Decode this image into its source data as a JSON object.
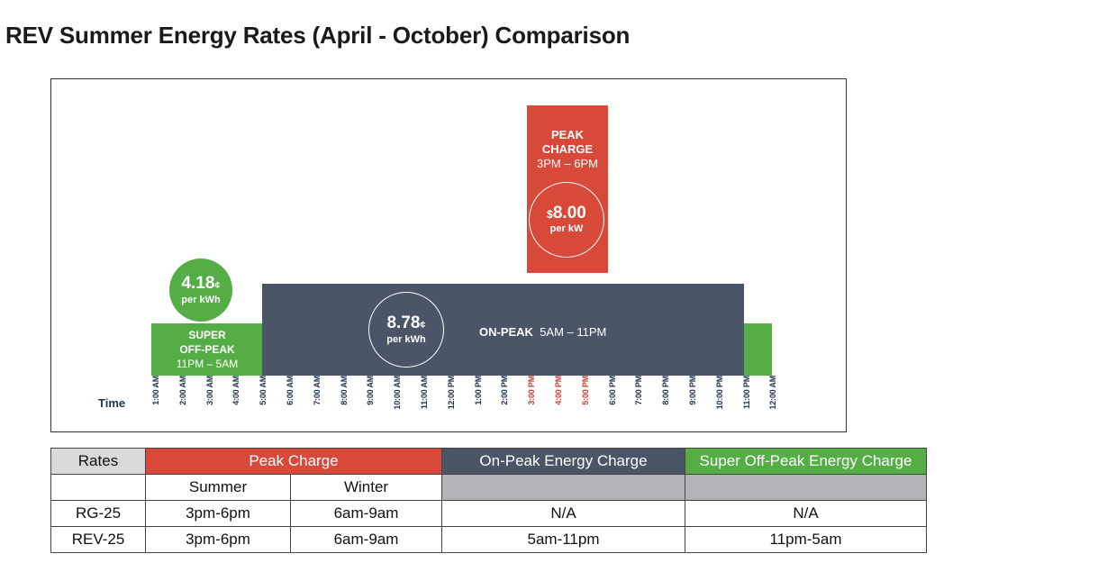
{
  "title": "REV Summer Energy Rates (April - October) Comparison",
  "diagram": {
    "time_label": "Time",
    "super_off_peak": {
      "label_line1": "SUPER",
      "label_line2": "OFF-PEAK",
      "hours": "11PM – 5AM",
      "rate_value": "4.18",
      "rate_unit": "¢",
      "rate_per": "per kWh",
      "color": "#55ad46"
    },
    "on_peak": {
      "label": "ON-PEAK",
      "hours": "5AM – 11PM",
      "rate_value": "8.78",
      "rate_unit": "¢",
      "rate_per": "per kWh",
      "color": "#4a5568"
    },
    "peak_charge": {
      "label_line1": "PEAK",
      "label_line2": "CHARGE",
      "hours": "3PM – 6PM",
      "rate_currency": "$",
      "rate_value": "8.00",
      "rate_per": "per kW",
      "color": "#d8493a"
    },
    "time_ticks": [
      {
        "label": "1:00 AM",
        "highlight": false
      },
      {
        "label": "2:00 AM",
        "highlight": false
      },
      {
        "label": "3:00 AM",
        "highlight": false
      },
      {
        "label": "4:00 AM",
        "highlight": false
      },
      {
        "label": "5:00 AM",
        "highlight": false
      },
      {
        "label": "6:00 AM",
        "highlight": false
      },
      {
        "label": "7:00 AM",
        "highlight": false
      },
      {
        "label": "8:00 AM",
        "highlight": false
      },
      {
        "label": "9:00 AM",
        "highlight": false
      },
      {
        "label": "10:00 AM",
        "highlight": false
      },
      {
        "label": "11:00 AM",
        "highlight": false
      },
      {
        "label": "12:00 PM",
        "highlight": false
      },
      {
        "label": "1:00 PM",
        "highlight": false
      },
      {
        "label": "2:00 PM",
        "highlight": false
      },
      {
        "label": "3:00 PM",
        "highlight": true
      },
      {
        "label": "4:00 PM",
        "highlight": true
      },
      {
        "label": "5:00 PM",
        "highlight": true
      },
      {
        "label": "6:00 PM",
        "highlight": false
      },
      {
        "label": "7:00 PM",
        "highlight": false
      },
      {
        "label": "8:00 PM",
        "highlight": false
      },
      {
        "label": "9:00 PM",
        "highlight": false
      },
      {
        "label": "10:00 PM",
        "highlight": false
      },
      {
        "label": "11:00 PM",
        "highlight": false
      },
      {
        "label": "12:00 AM",
        "highlight": false
      }
    ]
  },
  "rates_table": {
    "headers": {
      "rates": "Rates",
      "peak_charge": "Peak Charge",
      "on_peak": "On-Peak Energy Charge",
      "super_off_peak": "Super Off-Peak Energy Charge"
    },
    "subheaders": {
      "summer": "Summer",
      "winter": "Winter"
    },
    "rows": [
      {
        "rate": "RG-25",
        "summer": "3pm-6pm",
        "winter": "6am-9am",
        "on_peak": "N/A",
        "super_off_peak": "N/A"
      },
      {
        "rate": "REV-25",
        "summer": "3pm-6pm",
        "winter": "6am-9am",
        "on_peak": "5am-11pm",
        "super_off_peak": "11pm-5am"
      }
    ]
  }
}
